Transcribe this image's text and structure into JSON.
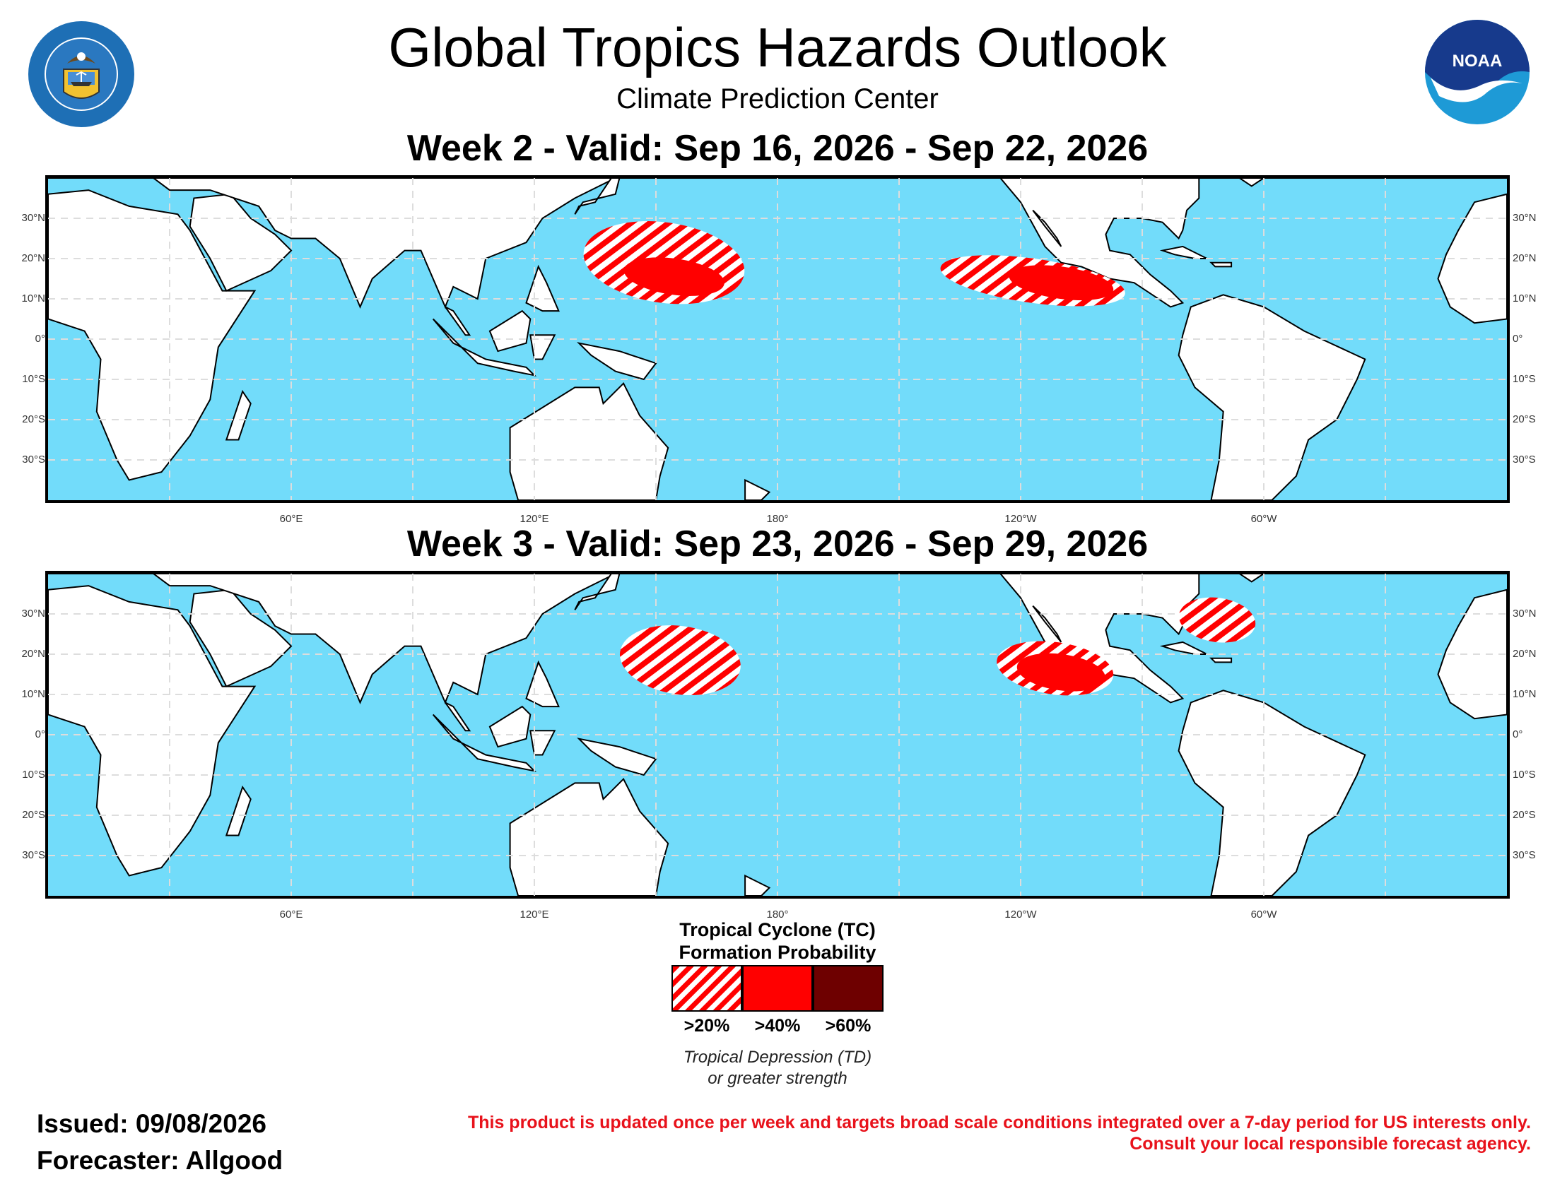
{
  "header": {
    "title": "Global Tropics Hazards Outlook",
    "subtitle": "Climate Prediction Center",
    "seal_text": "DEPARTMENT OF COMMERCE · UNITED STATES OF AMERICA",
    "noaa_text": "NOAA"
  },
  "colors": {
    "ocean": "#72dcfa",
    "land": "#ffffff",
    "prob20": "#ff0000",
    "prob40": "#ff0000",
    "prob60": "#6e0000"
  },
  "maps": {
    "lat_labels": [
      "30°N",
      "20°N",
      "10°N",
      "0°",
      "10°S",
      "20°S",
      "30°S"
    ],
    "lon_labels": [
      "60°E",
      "120°E",
      "180°",
      "120°W",
      "60°W"
    ],
    "week2": {
      "title": "Week 2 - Valid: Sep 16, 2026 - Sep 22, 2026",
      "hazards": [
        {
          "category": ">20%",
          "region": "West Pacific",
          "lon": [
            132,
            172
          ],
          "lat": [
            9,
            29
          ]
        },
        {
          "category": ">40%",
          "region": "West Pacific",
          "lon": [
            142,
            167
          ],
          "lat": [
            11,
            20
          ]
        },
        {
          "category": ">20%",
          "region": "East Pacific",
          "lon": [
            -140,
            -94
          ],
          "lat": [
            9,
            20
          ]
        },
        {
          "category": ">40%",
          "region": "East Pacific",
          "lon": [
            -123,
            -97
          ],
          "lat": [
            10,
            18
          ]
        }
      ]
    },
    "week3": {
      "title": "Week 3 - Valid: Sep 23, 2026 - Sep 29, 2026",
      "hazards": [
        {
          "category": ">20%",
          "region": "West Pacific",
          "lon": [
            141,
            171
          ],
          "lat": [
            10,
            27
          ]
        },
        {
          "category": ">20%",
          "region": "East Pacific",
          "lon": [
            -126,
            -97
          ],
          "lat": [
            10,
            23
          ]
        },
        {
          "category": ">40%",
          "region": "East Pacific",
          "lon": [
            -121,
            -99
          ],
          "lat": [
            11,
            20
          ]
        },
        {
          "category": ">20%",
          "region": "Western Atlantic",
          "lon": [
            -81,
            -62
          ],
          "lat": [
            23,
            34
          ]
        }
      ]
    }
  },
  "legend": {
    "title_line1": "Tropical Cyclone (TC)",
    "title_line2": "Formation Probability",
    "labels": [
      ">20%",
      ">40%",
      ">60%"
    ],
    "note_line1": "Tropical Depression (TD)",
    "note_line2": "or greater strength"
  },
  "footer": {
    "issued": "Issued: 09/08/2026",
    "forecaster": "Forecaster: Allgood",
    "disclaimer_line1": "This product is updated once per week and targets broad scale conditions integrated over a 7-day period for US interests only.",
    "disclaimer_line2": "Consult your local responsible forecast agency."
  }
}
